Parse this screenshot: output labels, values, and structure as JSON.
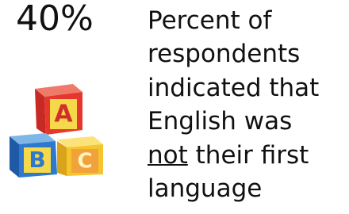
{
  "stat": {
    "value": "40%"
  },
  "icon": {
    "letters": [
      "A",
      "B",
      "C"
    ]
  },
  "description": {
    "lines": [
      "Percent of",
      "respondents",
      "indicated that",
      "English was"
    ],
    "emphasis": "not",
    "after_emphasis": "their first",
    "last_line": "language"
  }
}
